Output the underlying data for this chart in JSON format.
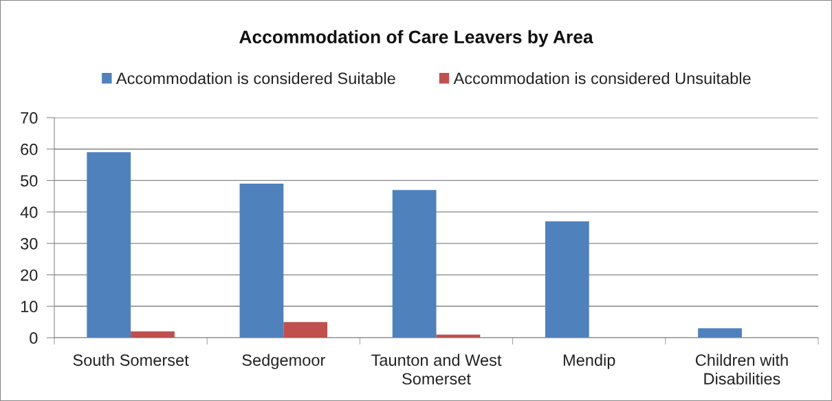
{
  "chart_data": {
    "type": "bar",
    "title": "Accommodation of Care Leavers by Area",
    "categories": [
      "South Somerset",
      "Sedgemoor",
      "Taunton and West\nSomerset",
      "Mendip",
      "Children with\nDisabilities"
    ],
    "series": [
      {
        "name": "Accommodation is considered Suitable",
        "color": "#4f81bd",
        "values": [
          59,
          49,
          47,
          37,
          3
        ]
      },
      {
        "name": "Accommodation is considered Unsuitable",
        "color": "#c0504d",
        "values": [
          2,
          5,
          1,
          0,
          0
        ]
      }
    ],
    "ylim": [
      0,
      70
    ],
    "yticks": [
      0,
      10,
      20,
      30,
      40,
      50,
      60,
      70
    ],
    "grid": "y",
    "legend": "top"
  }
}
